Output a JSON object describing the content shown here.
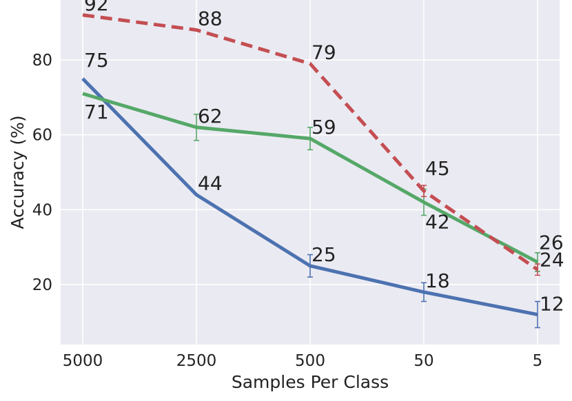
{
  "chart_data": {
    "type": "line",
    "categories": [
      "5000",
      "2500",
      "500",
      "50",
      "5"
    ],
    "xlabel": "Samples Per Class",
    "ylabel": "Accuracy (%)",
    "ylim": [
      4,
      96
    ],
    "yticks": [
      20,
      40,
      60,
      80
    ],
    "grid": true,
    "background": "#EAEAF2",
    "series": [
      {
        "values": [
          75,
          44,
          25,
          18,
          12
        ],
        "errors": [
          0,
          0,
          3,
          2.5,
          3.5
        ],
        "labels": [
          "75",
          "44",
          "25",
          "18",
          "12"
        ],
        "color": "#4C72B0",
        "style": "solid"
      },
      {
        "values": [
          71,
          62,
          59,
          42,
          26
        ],
        "errors": [
          0,
          3.5,
          3,
          3.5,
          2.5
        ],
        "labels": [
          "71",
          "62",
          "59",
          "42",
          "26"
        ],
        "color": "#55A868",
        "style": "solid"
      },
      {
        "values": [
          92,
          88,
          79,
          45,
          24
        ],
        "errors": [
          0,
          0,
          0,
          1.5,
          1.5
        ],
        "labels": [
          "92",
          "88",
          "79",
          "45",
          "24"
        ],
        "color": "#C44E52",
        "style": "dashed"
      }
    ]
  }
}
